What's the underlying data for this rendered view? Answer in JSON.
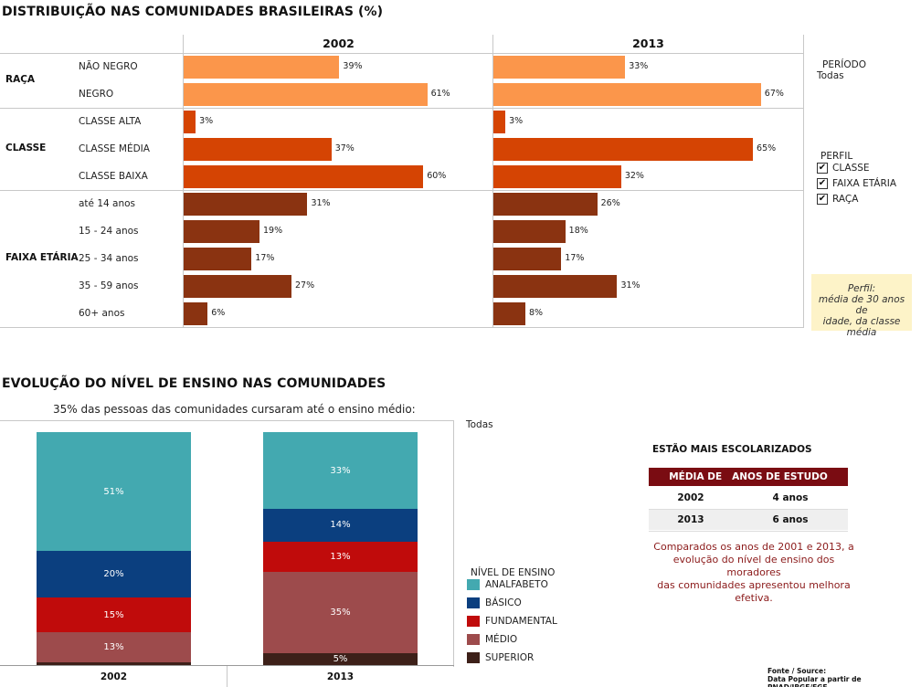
{
  "top": {
    "title": "DISTRIBUIÇÃO NAS COMUNIDADES BRASILEIRAS (%)",
    "columns": [
      "2002",
      "2013"
    ],
    "groups": [
      {
        "name": "RAÇA",
        "color": "#fb964b",
        "rows": [
          {
            "label": "NÃO NEGRO",
            "v2002": 39,
            "v2013": 33,
            "t2002": "39%",
            "t2013": "33%"
          },
          {
            "label": "NEGRO",
            "v2002": 61,
            "v2013": 67,
            "t2002": "61%",
            "t2013": "67%"
          }
        ]
      },
      {
        "name": "CLASSE",
        "color": "#d54403",
        "rows": [
          {
            "label": "CLASSE ALTA",
            "v2002": 3,
            "v2013": 3,
            "t2002": "3%",
            "t2013": "3%"
          },
          {
            "label": "CLASSE MÉDIA",
            "v2002": 37,
            "v2013": 65,
            "t2002": "37%",
            "t2013": "65%"
          },
          {
            "label": "CLASSE BAIXA",
            "v2002": 60,
            "v2013": 32,
            "t2002": "60%",
            "t2013": "32%"
          }
        ]
      },
      {
        "name": "FAIXA ETÁRIA",
        "color": "#8a3311",
        "rows": [
          {
            "label": "até 14 anos",
            "v2002": 31,
            "v2013": 26,
            "t2002": "31%",
            "t2013": "26%"
          },
          {
            "label": "15 - 24 anos",
            "v2002": 19,
            "v2013": 18,
            "t2002": "19%",
            "t2013": "18%"
          },
          {
            "label": "25 - 34 anos",
            "v2002": 17,
            "v2013": 17,
            "t2002": "17%",
            "t2013": "17%"
          },
          {
            "label": "35 - 59 anos",
            "v2002": 27,
            "v2013": 31,
            "t2002": "27%",
            "t2013": "31%"
          },
          {
            "label": "60+ anos",
            "v2002": 6,
            "v2013": 8,
            "t2002": "6%",
            "t2013": "8%"
          }
        ]
      }
    ]
  },
  "controls": {
    "period_title": "PERÍODO",
    "period_value": "Todas",
    "profile_title": "PERFIL",
    "profile_items": [
      {
        "label": "CLASSE",
        "checked": true
      },
      {
        "label": "FAIXA ETÁRIA",
        "checked": true
      },
      {
        "label": "RAÇA",
        "checked": true
      }
    ],
    "check_glyph": "✔"
  },
  "note": {
    "line1": "Perfil:",
    "line2": "média de 30 anos de",
    "line3": "idade, da classe",
    "line4": "média"
  },
  "bottom": {
    "title": "EVOLUÇÃO DO NÍVEL DE ENSINO NAS COMUNIDADES",
    "subtitle": "35% das pessoas das comunidades cursaram até o ensino médio:",
    "filter_value": "Todas",
    "legend_title": "NÍVEL DE ENSINO"
  },
  "chart_data": {
    "type": "bar",
    "stacked": true,
    "categories": [
      "2002",
      "2013"
    ],
    "series": [
      {
        "name": "ANALFABETO",
        "color": "#43a9b0",
        "values": [
          51,
          33
        ],
        "labels": [
          "51%",
          "33%"
        ]
      },
      {
        "name": "BÁSICO",
        "color": "#0b3f7f",
        "values": [
          20,
          14
        ],
        "labels": [
          "20%",
          "14%"
        ]
      },
      {
        "name": "FUNDAMENTAL",
        "color": "#c00b0b",
        "values": [
          15,
          13
        ],
        "labels": [
          "15%",
          "13%"
        ]
      },
      {
        "name": "MÉDIO",
        "color": "#9d4b4c",
        "values": [
          13,
          35
        ],
        "labels": [
          "13%",
          "35%"
        ]
      },
      {
        "name": "SUPERIOR",
        "color": "#3d2019",
        "values": [
          1,
          5
        ],
        "labels": [
          "",
          "5%"
        ]
      }
    ]
  },
  "schooling": {
    "title": "ESTÃO MAIS ESCOLARIZADOS",
    "header": "MÉDIA DE   ANOS DE ESTUDO",
    "rows": [
      {
        "year": "2002",
        "value": "4 anos"
      },
      {
        "year": "2013",
        "value": "6 anos"
      }
    ],
    "comment_l1": "Comparados os anos de 2001 e 2013, a",
    "comment_l2": "evolução do nível de ensino dos",
    "comment_l3": "moradores",
    "comment_l4": "das comunidades apresentou melhora",
    "comment_l5": "efetiva."
  },
  "source": {
    "line1": "Fonte / Source:",
    "line2": "Data Popular a partir de PNAD/IBGE/FGF"
  }
}
